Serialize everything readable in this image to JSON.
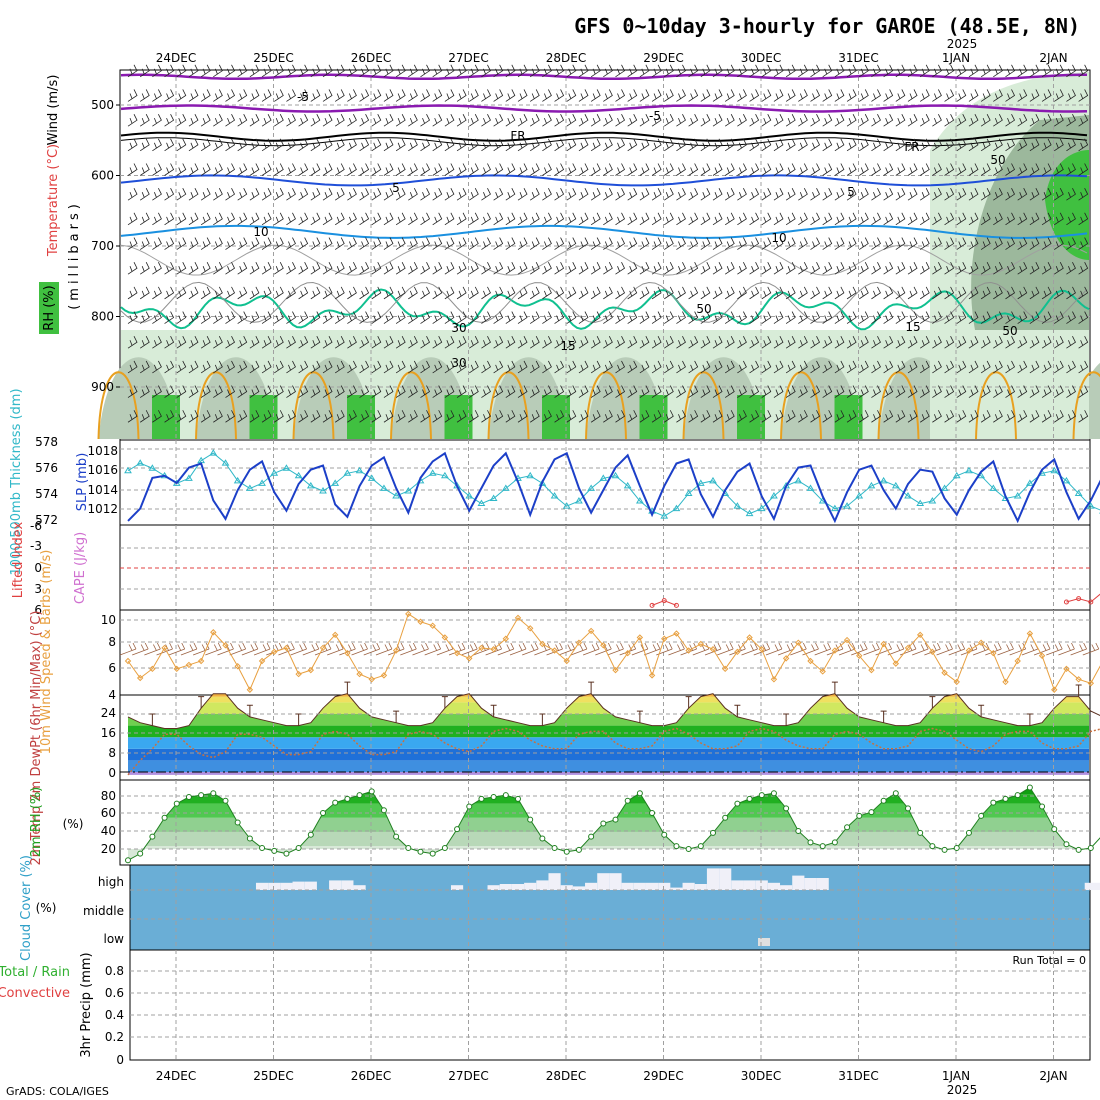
{
  "title": "GFS 0~10day 3-hourly for GAROE (48.5E, 8N)",
  "footer": "GrADS: COLA/IGES",
  "dates": [
    "24DEC",
    "25DEC",
    "26DEC",
    "27DEC",
    "28DEC",
    "29DEC",
    "30DEC",
    "31DEC",
    "1JAN",
    "2JAN"
  ],
  "year_label": "2025",
  "colors": {
    "temp_purple": "#8a1ab0",
    "temp_blue": "#1f4fd8",
    "temp_light_blue": "#1a90e0",
    "temp_teal": "#10c090",
    "temp_orange": "#e8a020",
    "rh_light": "#d8ecd8",
    "rh_mid": "#8aa88a",
    "rh_green": "#40c040",
    "slp": "#1c3fc8",
    "thickness": "#30b8c8",
    "wind10": "#e8a040",
    "cloud": "#6aaed6",
    "rh2m": "#20c020"
  },
  "panels": {
    "upper": {
      "ylabel_wind": "Wind (m/s)",
      "ylabel_temp": "Temperature (°C)",
      "ylabel_rh": "RH (%)",
      "ylabel_p": "(millibars)",
      "ticks": [
        "500",
        "600",
        "700",
        "800",
        "900"
      ],
      "contour_labels": [
        "-5",
        "-5",
        "FR",
        "FR",
        "5",
        "5",
        "10",
        "10",
        "15",
        "15",
        "30",
        "30",
        "50",
        "50",
        "50"
      ]
    },
    "slp": {
      "ylabel_thk": "1000-500mb Thickness (dm)",
      "ylabel_slp": "SLP (mb)",
      "thk_ticks": [
        "578",
        "576",
        "574",
        "572"
      ],
      "slp_ticks": [
        "1018",
        "1016",
        "1014",
        "1012"
      ]
    },
    "li": {
      "ylabel_li": "Lifted Index",
      "ylabel_cape": "CAPE (J/kg)",
      "ticks": [
        "-6",
        "-3",
        "0",
        "3",
        "6"
      ]
    },
    "wind": {
      "ylabel": "10m Wind Speed & Barbs (m/s)",
      "ticks": [
        "10",
        "8",
        "6",
        "4"
      ]
    },
    "temp": {
      "ylabel": "2m Temp 2m DewPt (6hr Min/Max) (°C)",
      "ticks": [
        "24",
        "16",
        "8",
        "0"
      ]
    },
    "rh": {
      "ylabel": "2m RH (%)",
      "ticks": [
        "80",
        "60",
        "40",
        "20"
      ]
    },
    "cloud": {
      "ylabel": "Cloud Cover (%)",
      "levels": [
        "high",
        "middle",
        "low"
      ]
    },
    "precip": {
      "ylabel_total": "Total / Rain",
      "ylabel_conv": "Convective",
      "ylabel": "3hr Precip (mm)",
      "ticks": [
        "0.8",
        "0.6",
        "0.4",
        "0.2",
        "0"
      ],
      "run_total": "Run Total = 0"
    }
  },
  "chart_data": [
    {
      "type": "line",
      "title": "SLP (mb)",
      "ylim": [
        1011,
        1019
      ],
      "x_step_hours": 3,
      "values": [
        1011.4,
        1012.6,
        1015.6,
        1015.8,
        1015.1,
        1016.6,
        1017.0,
        1013.4,
        1011.6,
        1014.4,
        1016.4,
        1017.2,
        1014.2,
        1012.4,
        1015.0,
        1016.4,
        1016.8,
        1013.0,
        1011.8,
        1014.8,
        1016.8,
        1017.6,
        1014.6,
        1012.2,
        1015.6,
        1017.2,
        1018.0,
        1014.8,
        1012.4,
        1014.6,
        1016.8,
        1018.0,
        1015.2,
        1012.0,
        1015.2,
        1017.4,
        1018.0,
        1014.6,
        1012.2,
        1014.4,
        1016.6,
        1017.8,
        1014.8,
        1012.0,
        1014.8,
        1017.0,
        1017.4,
        1014.0,
        1011.8,
        1014.4,
        1016.2,
        1017.0,
        1013.8,
        1011.6,
        1014.8,
        1016.6,
        1016.8,
        1013.8,
        1011.4,
        1014.2,
        1016.4,
        1016.8,
        1014.4,
        1012.6,
        1015.0,
        1016.4,
        1016.2,
        1013.6,
        1012.0,
        1014.4,
        1016.2,
        1017.2,
        1013.8,
        1011.4,
        1014.2,
        1016.4,
        1017.4,
        1014.2,
        1011.6,
        1013.4,
        1015.8,
        1017.2
      ]
    },
    {
      "type": "line",
      "title": "1000-500mb Thickness (dm)",
      "ylim": [
        571.5,
        578
      ],
      "values": [
        575.8,
        576.4,
        576.0,
        575.4,
        574.8,
        575.2,
        576.6,
        577.2,
        576.4,
        575.0,
        574.4,
        574.8,
        575.6,
        576.0,
        575.4,
        574.6,
        574.2,
        574.8,
        575.6,
        575.8,
        575.2,
        574.4,
        573.8,
        574.2,
        575.0,
        575.6,
        575.4,
        574.6,
        573.8,
        573.2,
        573.6,
        574.4,
        575.2,
        575.4,
        574.8,
        573.8,
        573.0,
        573.4,
        574.4,
        575.2,
        575.4,
        574.6,
        573.4,
        572.6,
        572.2,
        572.8,
        574.0,
        574.8,
        575.0,
        574.0,
        573.0,
        572.4,
        572.8,
        573.8,
        574.6,
        575.0,
        574.4,
        573.4,
        572.8,
        573.0,
        573.8,
        574.6,
        575.0,
        574.6,
        573.8,
        573.2,
        573.4,
        574.4,
        575.4,
        575.8,
        575.4,
        574.4,
        573.6,
        573.8,
        574.8,
        575.6,
        575.8,
        575.0,
        574.0,
        573.0,
        572.6,
        573.4
      ]
    },
    {
      "type": "line",
      "title": "Lifted Index",
      "ylim": [
        -6,
        6
      ],
      "values": [
        null,
        null,
        null,
        null,
        null,
        null,
        null,
        null,
        null,
        null,
        null,
        null,
        null,
        null,
        null,
        null,
        null,
        null,
        null,
        null,
        null,
        null,
        null,
        null,
        null,
        null,
        null,
        null,
        null,
        null,
        null,
        null,
        null,
        null,
        null,
        null,
        null,
        null,
        null,
        null,
        null,
        null,
        null,
        5.5,
        4.8,
        5.5,
        null,
        null,
        null,
        null,
        null,
        null,
        null,
        null,
        null,
        null,
        null,
        null,
        null,
        null,
        null,
        null,
        null,
        null,
        null,
        null,
        null,
        null,
        null,
        null,
        null,
        null,
        null,
        null,
        null,
        null,
        null,
        5.0,
        4.5,
        5.0,
        3.5,
        2.0
      ]
    },
    {
      "type": "line",
      "title": "10m Wind Speed (m/s)",
      "ylim": [
        4,
        10.5
      ],
      "values": [
        6.6,
        5.3,
        6.0,
        7.6,
        6.0,
        6.3,
        6.6,
        8.8,
        7.8,
        6.2,
        4.4,
        6.6,
        7.3,
        7.6,
        5.6,
        5.9,
        7.6,
        8.6,
        7.2,
        5.6,
        5.2,
        5.5,
        7.4,
        10.2,
        9.6,
        9.3,
        8.4,
        7.2,
        6.8,
        7.6,
        7.5,
        8.3,
        9.9,
        9.1,
        7.9,
        7.4,
        6.6,
        8.0,
        8.9,
        7.8,
        5.9,
        7.2,
        8.4,
        5.5,
        8.3,
        8.7,
        7.4,
        7.9,
        7.5,
        6.0,
        7.3,
        8.4,
        7.5,
        5.2,
        6.8,
        8.0,
        6.6,
        5.8,
        7.4,
        8.2,
        7.0,
        5.9,
        7.9,
        6.4,
        7.6,
        8.6,
        7.3,
        5.7,
        5.0,
        7.4,
        8.0,
        7.2,
        5.0,
        6.6,
        8.7,
        7.0,
        4.4,
        6.0,
        5.2,
        4.9,
        6.6,
        7.4
      ]
    },
    {
      "type": "area",
      "title": "2m Temp (°C)",
      "ylim": [
        -1,
        30
      ],
      "values": [
        19,
        17,
        16,
        15,
        15,
        16,
        22,
        27,
        27,
        22,
        19,
        18,
        17,
        16,
        16,
        17,
        22,
        26,
        27,
        22,
        19,
        18,
        17,
        16,
        16,
        17,
        22,
        26,
        27,
        22,
        19,
        18,
        17,
        16,
        16,
        17,
        22,
        26,
        27,
        22,
        19,
        18,
        17,
        16,
        16,
        17,
        22,
        26,
        27,
        22,
        19,
        18,
        17,
        16,
        16,
        17,
        22,
        26,
        27,
        22,
        19,
        18,
        17,
        16,
        16,
        17,
        22,
        26,
        27,
        22,
        19,
        18,
        17,
        16,
        16,
        17,
        22,
        26,
        26,
        21,
        19,
        18
      ]
    },
    {
      "type": "line",
      "title": "2m DewPt (°C)",
      "ylim": [
        -1,
        30
      ],
      "values": [
        -1,
        4,
        8,
        13,
        13,
        9,
        6,
        5,
        7,
        13,
        13,
        12,
        9,
        6,
        6,
        7,
        13,
        14,
        13,
        9,
        6,
        6,
        7,
        13,
        14,
        13,
        10,
        8,
        7,
        9,
        14,
        15,
        14,
        11,
        9,
        8,
        8,
        13,
        14,
        14,
        10,
        8,
        8,
        9,
        14,
        15,
        13,
        10,
        8,
        8,
        9,
        14,
        15,
        14,
        11,
        9,
        8,
        8,
        13,
        14,
        13,
        10,
        8,
        8,
        9,
        14,
        15,
        14,
        11,
        8,
        7,
        9,
        13,
        14,
        14,
        10,
        8,
        8,
        9,
        14,
        15,
        17
      ]
    },
    {
      "type": "area",
      "title": "2m RH (%)",
      "ylim": [
        10,
        100
      ],
      "values": [
        15,
        22,
        40,
        60,
        75,
        82,
        84,
        86,
        78,
        55,
        38,
        28,
        25,
        22,
        28,
        42,
        65,
        76,
        80,
        84,
        88,
        68,
        40,
        28,
        24,
        22,
        28,
        48,
        72,
        80,
        82,
        84,
        80,
        58,
        38,
        28,
        24,
        26,
        40,
        54,
        58,
        78,
        86,
        65,
        42,
        30,
        27,
        30,
        44,
        60,
        75,
        80,
        84,
        86,
        70,
        46,
        34,
        30,
        34,
        50,
        62,
        66,
        78,
        86,
        70,
        44,
        30,
        26,
        28,
        44,
        62,
        76,
        80,
        84,
        92,
        72,
        48,
        32,
        26,
        28,
        42,
        62
      ]
    },
    {
      "type": "bar",
      "title": "High Cloud Cover (%)",
      "ylim": [
        0,
        100
      ],
      "values": [
        0,
        0,
        0,
        0,
        0,
        0,
        0,
        0,
        0,
        0,
        0,
        30,
        30,
        30,
        35,
        35,
        0,
        40,
        40,
        20,
        0,
        0,
        0,
        0,
        0,
        0,
        0,
        20,
        0,
        0,
        20,
        25,
        25,
        30,
        40,
        70,
        20,
        15,
        30,
        70,
        70,
        30,
        30,
        30,
        30,
        10,
        30,
        25,
        90,
        90,
        40,
        40,
        40,
        30,
        20,
        60,
        50,
        50,
        0,
        0,
        0,
        0,
        0,
        0,
        0,
        0,
        0,
        0,
        0,
        0,
        0,
        0,
        0,
        0,
        0,
        0,
        0,
        0,
        0,
        30,
        30,
        20
      ]
    },
    {
      "type": "bar",
      "title": "3hr Precip (mm)",
      "ylim": [
        0,
        1
      ],
      "values": []
    }
  ]
}
